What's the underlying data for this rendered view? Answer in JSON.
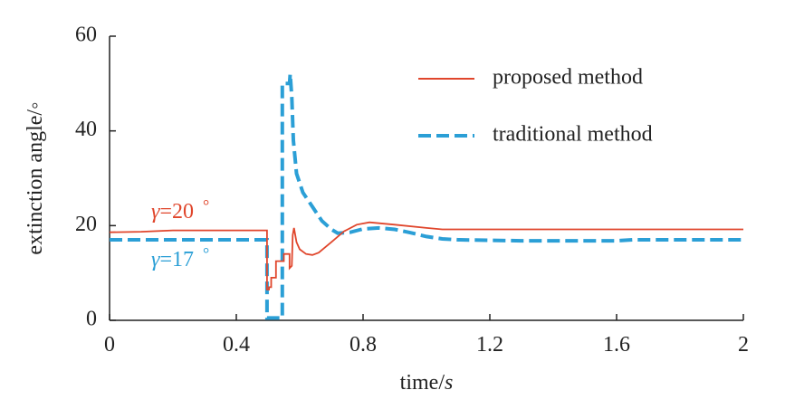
{
  "chart_data": {
    "type": "line",
    "xlabel": {
      "main": "time/",
      "unit": "s"
    },
    "ylabel": "extinction angle/◦",
    "xlim": [
      0,
      2
    ],
    "ylim": [
      0,
      60
    ],
    "x_ticks": [
      "0",
      "0.4",
      "0.8",
      "1.2",
      "1.6",
      "2"
    ],
    "x_tick_values": [
      0,
      0.4,
      0.8,
      1.2,
      1.6,
      2
    ],
    "y_ticks": [
      "0",
      "20",
      "40",
      "60"
    ],
    "y_tick_values": [
      0,
      20,
      40,
      60
    ],
    "grid": false,
    "legend_position": "top-right",
    "series": [
      {
        "name": "proposed method",
        "color": "#e0462c",
        "dash": "solid",
        "points": [
          [
            0,
            18.6
          ],
          [
            0.1,
            18.7
          ],
          [
            0.2,
            19.0
          ],
          [
            0.3,
            19.0
          ],
          [
            0.4,
            19.0
          ],
          [
            0.48,
            19.0
          ],
          [
            0.497,
            19.0
          ],
          [
            0.497,
            6.5
          ],
          [
            0.503,
            6.5
          ],
          [
            0.503,
            7.0
          ],
          [
            0.51,
            7.0
          ],
          [
            0.51,
            9.0
          ],
          [
            0.525,
            9.0
          ],
          [
            0.525,
            12.5
          ],
          [
            0.55,
            12.5
          ],
          [
            0.55,
            14.0
          ],
          [
            0.568,
            14.0
          ],
          [
            0.568,
            11.0
          ],
          [
            0.575,
            11.5
          ],
          [
            0.578,
            18.0
          ],
          [
            0.582,
            19.5
          ],
          [
            0.59,
            16.5
          ],
          [
            0.6,
            15.0
          ],
          [
            0.62,
            14.0
          ],
          [
            0.64,
            13.8
          ],
          [
            0.66,
            14.3
          ],
          [
            0.7,
            16.5
          ],
          [
            0.74,
            18.8
          ],
          [
            0.78,
            20.2
          ],
          [
            0.82,
            20.7
          ],
          [
            0.9,
            20.2
          ],
          [
            1.0,
            19.5
          ],
          [
            1.05,
            19.2
          ],
          [
            1.2,
            19.2
          ],
          [
            1.5,
            19.2
          ],
          [
            1.8,
            19.2
          ],
          [
            2.0,
            19.2
          ]
        ]
      },
      {
        "name": "traditional method",
        "color": "#2b9fd6",
        "dash": "dashed",
        "points": [
          [
            0,
            17.0
          ],
          [
            0.3,
            17.0
          ],
          [
            0.49,
            17.0
          ],
          [
            0.497,
            17.0
          ],
          [
            0.497,
            0.5
          ],
          [
            0.54,
            0.5
          ],
          [
            0.545,
            0.5
          ],
          [
            0.545,
            50.0
          ],
          [
            0.568,
            50.0
          ],
          [
            0.57,
            52.0
          ],
          [
            0.575,
            47.0
          ],
          [
            0.58,
            38.0
          ],
          [
            0.59,
            31.0
          ],
          [
            0.61,
            27.0
          ],
          [
            0.64,
            24.0
          ],
          [
            0.67,
            21.0
          ],
          [
            0.7,
            19.2
          ],
          [
            0.72,
            18.4
          ],
          [
            0.76,
            18.6
          ],
          [
            0.8,
            19.3
          ],
          [
            0.85,
            19.5
          ],
          [
            0.9,
            19.2
          ],
          [
            0.95,
            18.5
          ],
          [
            1.0,
            17.7
          ],
          [
            1.05,
            17.2
          ],
          [
            1.1,
            17.0
          ],
          [
            1.3,
            16.8
          ],
          [
            1.6,
            16.8
          ],
          [
            1.65,
            17.0
          ],
          [
            2.0,
            17.0
          ]
        ]
      }
    ],
    "annotations": [
      {
        "symbol": "γ",
        "text": "=20",
        "degree": "°",
        "color": "#e0462c"
      },
      {
        "symbol": "γ",
        "text": "=17",
        "degree": "°",
        "color": "#2b9fd6"
      }
    ]
  }
}
